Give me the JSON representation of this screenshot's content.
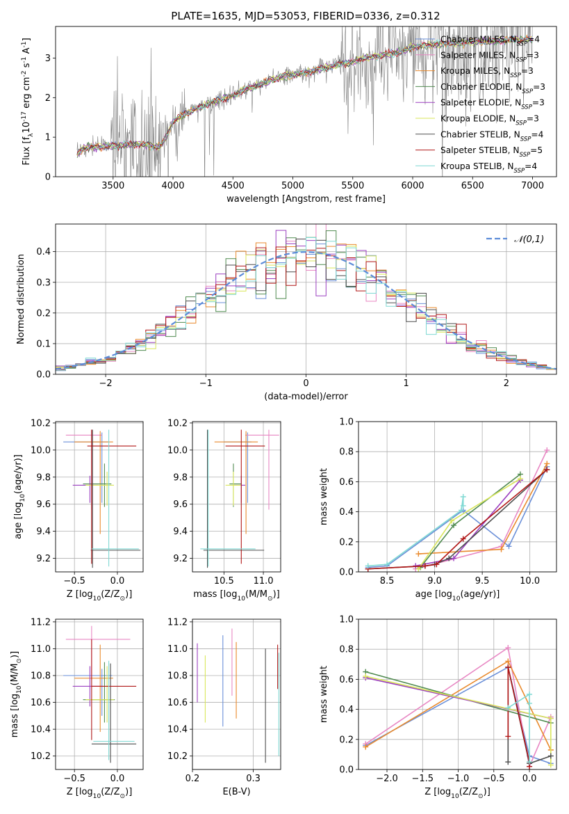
{
  "figure_title": "PLATE=1635, MJD=53053, FIBERID=0336, z=0.312",
  "colors": {
    "Chabrier MILES": "#6a8fd8",
    "Salpeter MILES": "#e887c3",
    "Kroupa MILES": "#e98a2d",
    "Chabrier ELODIE": "#4f8a4f",
    "Salpeter ELODIE": "#9b3fc0",
    "Kroupa ELODIE": "#d9e65a",
    "Chabrier STELIB": "#4d4d4d",
    "Salpeter STELIB": "#b01515",
    "Kroupa STELIB": "#7fd9d3",
    "data": "#808080",
    "normal": "#5b8bd8"
  },
  "chart_data": [
    {
      "id": "spectrum",
      "type": "line",
      "title": "PLATE=1635, MJD=53053, FIBERID=0336, z=0.312",
      "xlabel": "wavelength [Angstrom, rest frame]",
      "ylabel": "Flux [f$_\\lambda$10$^{-17}$ erg cm$^{-2}$ s$^{-1}$ A$^{-1}$]",
      "xlim": [
        3020,
        7200
      ],
      "ylim": [
        0,
        3.8
      ],
      "xticks": [
        3500,
        4000,
        4500,
        5000,
        5500,
        6000,
        6500,
        7000
      ],
      "yticks": [
        0,
        1,
        2,
        3
      ],
      "legend": "upper right",
      "legend_entries": [
        {
          "label": "Chabrier MILES, N",
          "sub": "SSP",
          "value": "=4"
        },
        {
          "label": "Salpeter MILES, N",
          "sub": "SSP",
          "value": "=3"
        },
        {
          "label": "Kroupa MILES, N",
          "sub": "SSP",
          "value": "=3"
        },
        {
          "label": "Chabrier ELODIE, N",
          "sub": "SSP",
          "value": "=3"
        },
        {
          "label": "Salpeter ELODIE, N",
          "sub": "SSP",
          "value": "=3"
        },
        {
          "label": "Kroupa ELODIE, N",
          "sub": "SSP",
          "value": "=3"
        },
        {
          "label": "Chabrier STELIB, N",
          "sub": "SSP",
          "value": "=4"
        },
        {
          "label": "Salpeter STELIB, N",
          "sub": "SSP",
          "value": "=5"
        },
        {
          "label": "Kroupa STELIB, N",
          "sub": "SSP",
          "value": "=4"
        }
      ],
      "model_continuum": {
        "x": [
          3200,
          3250,
          3300,
          3400,
          3500,
          3600,
          3700,
          3800,
          3850,
          3900,
          3950,
          4000,
          4100,
          4200,
          4300,
          4400,
          4500,
          4600,
          4700,
          4800,
          4900,
          5000,
          5100,
          5200,
          5300,
          5400,
          5500,
          5600,
          5700,
          5800,
          5900,
          6000,
          6200,
          6400,
          6600,
          6800,
          7000
        ],
        "y": [
          0.55,
          0.72,
          0.75,
          0.76,
          0.78,
          0.8,
          0.82,
          0.8,
          0.74,
          0.78,
          1.05,
          1.4,
          1.6,
          1.72,
          1.85,
          1.95,
          2.05,
          2.2,
          2.3,
          2.42,
          2.52,
          2.58,
          2.62,
          2.7,
          2.78,
          2.85,
          2.9,
          3.0,
          3.05,
          3.1,
          3.15,
          3.28,
          3.35,
          3.38,
          3.42,
          3.45,
          3.48
        ]
      },
      "data_spectrum": {
        "xrange": [
          3200,
          7000
        ],
        "noise_note": "noisy data, large scatter below 4000 and above 5500 A"
      }
    },
    {
      "id": "residuals",
      "type": "step",
      "xlabel": "(data-model)/error",
      "ylabel": "Normed distribution",
      "xlim": [
        -2.5,
        2.5
      ],
      "ylim": [
        0,
        0.49
      ],
      "xticks": [
        -2,
        -1,
        0,
        1,
        2
      ],
      "yticks": [
        0.0,
        0.1,
        0.2,
        0.3,
        0.4
      ],
      "legend": "upper right",
      "legend_label": "$\\mathcal{N}(0,1)$",
      "bin_width": 0.1
    },
    {
      "id": "age_vs_Z",
      "type": "errorbar",
      "xlabel": "Z [log$_{10}$(Z/Z$_\\odot$)]",
      "ylabel": "age [log$_{10}$(age/yr)]",
      "xlim": [
        -0.72,
        0.3
      ],
      "ylim": [
        9.1,
        10.21
      ],
      "xticks": [
        -0.5,
        0.0
      ],
      "yticks": [
        9.2,
        9.4,
        9.6,
        9.8,
        10.0,
        10.2
      ],
      "points": [
        {
          "model": "Chabrier MILES",
          "x": -0.18,
          "y": 10.06,
          "xerr": [
            0.45,
            0.08
          ],
          "yerr": [
            0.45,
            0.07
          ]
        },
        {
          "model": "Salpeter MILES",
          "x": -0.3,
          "y": 10.11,
          "xerr": [
            0.3,
            0.12
          ],
          "yerr": [
            0.55,
            0.04
          ]
        },
        {
          "model": "Kroupa MILES",
          "x": -0.2,
          "y": 10.06,
          "xerr": [
            0.3,
            0.15
          ],
          "yerr": [
            0.68,
            0.08
          ]
        },
        {
          "model": "Chabrier ELODIE",
          "x": -0.15,
          "y": 9.75,
          "xerr": [
            0.25,
            0.08
          ],
          "yerr": [
            0.17,
            0.15
          ]
        },
        {
          "model": "Salpeter ELODIE",
          "x": -0.32,
          "y": 9.74,
          "xerr": [
            0.2,
            0.1
          ],
          "yerr": [
            0.13,
            0.07
          ]
        },
        {
          "model": "Kroupa ELODIE",
          "x": -0.12,
          "y": 9.74,
          "xerr": [
            0.25,
            0.08
          ],
          "yerr": [
            0.15,
            0.1
          ]
        },
        {
          "model": "Chabrier STELIB",
          "x": -0.29,
          "y": 9.26,
          "xerr": [
            0.02,
            0.56
          ],
          "yerr": [
            0.13,
            0.89
          ]
        },
        {
          "model": "Salpeter STELIB",
          "x": -0.3,
          "y": 10.03,
          "xerr": [
            0.05,
            0.52
          ],
          "yerr": [
            0.87,
            0.12
          ]
        },
        {
          "model": "Kroupa STELIB",
          "x": -0.1,
          "y": 9.27,
          "xerr": [
            0.2,
            0.35
          ],
          "yerr": [
            0.13,
            0.88
          ]
        }
      ]
    },
    {
      "id": "age_vs_mass",
      "type": "errorbar",
      "xlabel": "mass [log$_{10}$(M/M$_\\odot$)]",
      "ylabel": "",
      "xlim": [
        10.1,
        11.22
      ],
      "ylim": [
        9.1,
        10.21
      ],
      "xticks": [
        10.5,
        11.0
      ],
      "yticks": [
        9.2,
        9.4,
        9.6,
        9.8,
        10.0,
        10.2
      ],
      "points": [
        {
          "model": "Chabrier MILES",
          "x": 10.8,
          "y": 10.06,
          "xerr": [
            0.3,
            0.05
          ],
          "yerr": [
            0.45,
            0.07
          ]
        },
        {
          "model": "Salpeter MILES",
          "x": 11.07,
          "y": 10.11,
          "xerr": [
            0.3,
            0.13
          ],
          "yerr": [
            0.55,
            0.04
          ]
        },
        {
          "model": "Kroupa MILES",
          "x": 10.78,
          "y": 10.06,
          "xerr": [
            0.4,
            0.15
          ],
          "yerr": [
            0.68,
            0.08
          ]
        },
        {
          "model": "Chabrier ELODIE",
          "x": 10.62,
          "y": 9.75,
          "xerr": [
            0.05,
            0.1
          ],
          "yerr": [
            0.17,
            0.15
          ]
        },
        {
          "model": "Salpeter ELODIE",
          "x": 10.72,
          "y": 9.74,
          "xerr": [
            0.1,
            0.05
          ],
          "yerr": [
            0.13,
            0.07
          ]
        },
        {
          "model": "Kroupa ELODIE",
          "x": 10.62,
          "y": 9.74,
          "xerr": [
            0.1,
            0.1
          ],
          "yerr": [
            0.15,
            0.1
          ]
        },
        {
          "model": "Chabrier STELIB",
          "x": 10.29,
          "y": 9.26,
          "xerr": [
            0.05,
            0.72
          ],
          "yerr": [
            0.13,
            0.89
          ]
        },
        {
          "model": "Salpeter STELIB",
          "x": 10.72,
          "y": 10.03,
          "xerr": [
            0.2,
            0.3
          ],
          "yerr": [
            0.87,
            0.12
          ]
        },
        {
          "model": "Kroupa STELIB",
          "x": 10.3,
          "y": 9.27,
          "xerr": [
            0.1,
            0.6
          ],
          "yerr": [
            0.13,
            0.88
          ]
        }
      ]
    },
    {
      "id": "weight_vs_age",
      "type": "line",
      "xlabel": "age [log$_{10}$(age/yr)]",
      "ylabel": "mass weight",
      "xlim": [
        8.2,
        10.28
      ],
      "ylim": [
        0,
        1.0
      ],
      "xticks": [
        8.5,
        9.0,
        9.5,
        10.0
      ],
      "yticks": [
        0.0,
        0.2,
        0.4,
        0.6,
        0.8,
        1.0
      ],
      "series": [
        {
          "model": "Chabrier MILES",
          "x": [
            8.3,
            8.5,
            9.3,
            9.78,
            10.18
          ],
          "y": [
            0.03,
            0.04,
            0.41,
            0.17,
            0.7
          ]
        },
        {
          "model": "Salpeter MILES",
          "x": [
            8.8,
            9.7,
            10.18
          ],
          "y": [
            0.02,
            0.17,
            0.81
          ]
        },
        {
          "model": "Kroupa MILES",
          "x": [
            8.83,
            9.7,
            10.18
          ],
          "y": [
            0.12,
            0.15,
            0.72
          ]
        },
        {
          "model": "Chabrier ELODIE",
          "x": [
            8.85,
            9.2,
            9.9
          ],
          "y": [
            0.03,
            0.31,
            0.65
          ]
        },
        {
          "model": "Salpeter ELODIE",
          "x": [
            8.8,
            9.2,
            9.9
          ],
          "y": [
            0.04,
            0.09,
            0.61
          ]
        },
        {
          "model": "Kroupa ELODIE",
          "x": [
            8.83,
            9.18,
            9.9
          ],
          "y": [
            0.02,
            0.34,
            0.62
          ]
        },
        {
          "model": "Chabrier STELIB",
          "x": [
            8.3,
            8.9,
            9.0,
            9.15,
            10.18
          ],
          "y": [
            0.02,
            0.04,
            0.05,
            0.09,
            0.68
          ]
        },
        {
          "model": "Salpeter STELIB",
          "x": [
            8.3,
            8.9,
            9.02,
            9.3,
            10.18
          ],
          "y": [
            0.02,
            0.04,
            0.05,
            0.22,
            0.68
          ]
        },
        {
          "model": "Kroupa STELIB",
          "x": [
            8.3,
            8.5,
            9.28,
            9.3,
            9.3
          ],
          "y": [
            0.04,
            0.05,
            0.41,
            0.5,
            0.44
          ]
        }
      ]
    },
    {
      "id": "mass_vs_Z",
      "type": "errorbar",
      "xlabel": "Z [log$_{10}$(Z/Z$_\\odot$)]",
      "ylabel": "mass [log$_{10}$(M/M$_\\odot$)]",
      "xlim": [
        -0.72,
        0.3
      ],
      "ylim": [
        10.1,
        11.22
      ],
      "xticks": [
        -0.5,
        0.0
      ],
      "yticks": [
        10.2,
        10.4,
        10.6,
        10.8,
        11.0,
        11.2
      ],
      "points": [
        {
          "model": "Chabrier MILES",
          "x": -0.18,
          "y": 10.8,
          "xerr": [
            0.45,
            0.12
          ],
          "yerr": [
            0.3,
            0.05
          ]
        },
        {
          "model": "Salpeter MILES",
          "x": -0.3,
          "y": 11.07,
          "xerr": [
            0.3,
            0.45
          ],
          "yerr": [
            0.3,
            0.1
          ]
        },
        {
          "model": "Kroupa MILES",
          "x": -0.2,
          "y": 10.78,
          "xerr": [
            0.3,
            0.15
          ],
          "yerr": [
            0.4,
            0.25
          ]
        },
        {
          "model": "Chabrier ELODIE",
          "x": -0.15,
          "y": 10.62,
          "xerr": [
            0.25,
            0.12
          ],
          "yerr": [
            0.17,
            0.28
          ]
        },
        {
          "model": "Salpeter ELODIE",
          "x": -0.32,
          "y": 10.72,
          "xerr": [
            0.2,
            0.15
          ],
          "yerr": [
            0.15,
            0.15
          ]
        },
        {
          "model": "Kroupa ELODIE",
          "x": -0.12,
          "y": 10.62,
          "xerr": [
            0.25,
            0.08
          ],
          "yerr": [
            0.17,
            0.25
          ]
        },
        {
          "model": "Chabrier STELIB",
          "x": -0.08,
          "y": 10.29,
          "xerr": [
            0.22,
            0.3
          ],
          "yerr": [
            0.14,
            0.6
          ]
        },
        {
          "model": "Salpeter STELIB",
          "x": -0.3,
          "y": 10.72,
          "xerr": [
            0.0,
            0.52
          ],
          "yerr": [
            0.4,
            0.35
          ]
        },
        {
          "model": "Kroupa STELIB",
          "x": -0.1,
          "y": 10.31,
          "xerr": [
            0.18,
            0.3
          ],
          "yerr": [
            0.14,
            0.6
          ]
        }
      ]
    },
    {
      "id": "mass_vs_EBV",
      "type": "errorbar",
      "xlabel": "E(B-V)",
      "ylabel": "",
      "xlim": [
        0.2,
        0.345
      ],
      "ylim": [
        10.1,
        11.22
      ],
      "xticks": [
        0.2,
        0.3
      ],
      "yticks": [
        10.2,
        10.4,
        10.6,
        10.8,
        11.0,
        11.2
      ],
      "points": [
        {
          "model": "Salpeter ELODIE",
          "x": 0.208,
          "y": 10.8,
          "xerr": [
            0.0,
            0.0
          ],
          "yerr": [
            0.2,
            0.24
          ]
        },
        {
          "model": "Kroupa ELODIE",
          "x": 0.221,
          "y": 10.7,
          "xerr": [
            0.0,
            0.0
          ],
          "yerr": [
            0.25,
            0.25
          ]
        },
        {
          "model": "Chabrier MILES",
          "x": 0.25,
          "y": 10.8,
          "xerr": [
            0.0,
            0.0
          ],
          "yerr": [
            0.38,
            0.3
          ]
        },
        {
          "model": "Salpeter MILES",
          "x": 0.265,
          "y": 10.95,
          "xerr": [
            0.0,
            0.0
          ],
          "yerr": [
            0.3,
            0.2
          ]
        },
        {
          "model": "Kroupa MILES",
          "x": 0.272,
          "y": 10.78,
          "xerr": [
            0.0,
            0.0
          ],
          "yerr": [
            0.3,
            0.27
          ]
        },
        {
          "model": "Chabrier STELIB",
          "x": 0.32,
          "y": 10.6,
          "xerr": [
            0.0,
            0.0
          ],
          "yerr": [
            0.45,
            0.4
          ]
        },
        {
          "model": "Salpeter STELIB",
          "x": 0.34,
          "y": 10.9,
          "xerr": [
            0.0,
            0.0
          ],
          "yerr": [
            0.2,
            0.13
          ]
        },
        {
          "model": "Kroupa STELIB",
          "x": 0.342,
          "y": 10.6,
          "xerr": [
            0.0,
            0.0
          ],
          "yerr": [
            0.4,
            0.37
          ]
        }
      ]
    },
    {
      "id": "weight_vs_Z",
      "type": "line",
      "xlabel": "Z [log$_{10}$(Z/Z$_\\odot$)]",
      "ylabel": "mass weight",
      "xlim": [
        -2.4,
        0.38
      ],
      "ylim": [
        0,
        1.0
      ],
      "xticks": [
        -2.0,
        -1.5,
        -1.0,
        -0.5,
        0.0
      ],
      "yticks": [
        0.0,
        0.2,
        0.4,
        0.6,
        0.8,
        1.0
      ],
      "series": [
        {
          "model": "Chabrier MILES",
          "x": [
            -2.3,
            -0.3,
            0.0,
            0.3
          ],
          "y": [
            0.16,
            0.68,
            0.09,
            0.04
          ]
        },
        {
          "model": "Salpeter MILES",
          "x": [
            -2.3,
            -0.3,
            0.0,
            0.3
          ],
          "y": [
            0.17,
            0.81,
            0.02,
            0.35
          ]
        },
        {
          "model": "Kroupa MILES",
          "x": [
            -2.3,
            -0.3,
            0.3,
            0.3
          ],
          "y": [
            0.15,
            0.72,
            0.13,
            0.13
          ]
        },
        {
          "model": "Chabrier ELODIE",
          "x": [
            -2.3,
            0.3
          ],
          "y": [
            0.65,
            0.31
          ]
        },
        {
          "model": "Salpeter ELODIE",
          "x": [
            -2.3,
            0.3
          ],
          "y": [
            0.61,
            0.34
          ]
        },
        {
          "model": "Kroupa ELODIE",
          "x": [
            -2.3,
            0.3,
            0.3
          ],
          "y": [
            0.62,
            0.34,
            0.03
          ]
        },
        {
          "model": "Chabrier STELIB",
          "x": [
            -0.3,
            -0.3,
            0.0,
            0.3
          ],
          "y": [
            0.05,
            0.68,
            0.04,
            0.09
          ]
        },
        {
          "model": "Salpeter STELIB",
          "x": [
            -0.3,
            -0.3,
            0.0,
            0.0
          ],
          "y": [
            0.22,
            0.68,
            0.05,
            0.02
          ]
        },
        {
          "model": "Kroupa STELIB",
          "x": [
            -0.3,
            0.0,
            0.0,
            0.0
          ],
          "y": [
            0.41,
            0.5,
            0.05,
            0.44
          ]
        }
      ]
    }
  ]
}
